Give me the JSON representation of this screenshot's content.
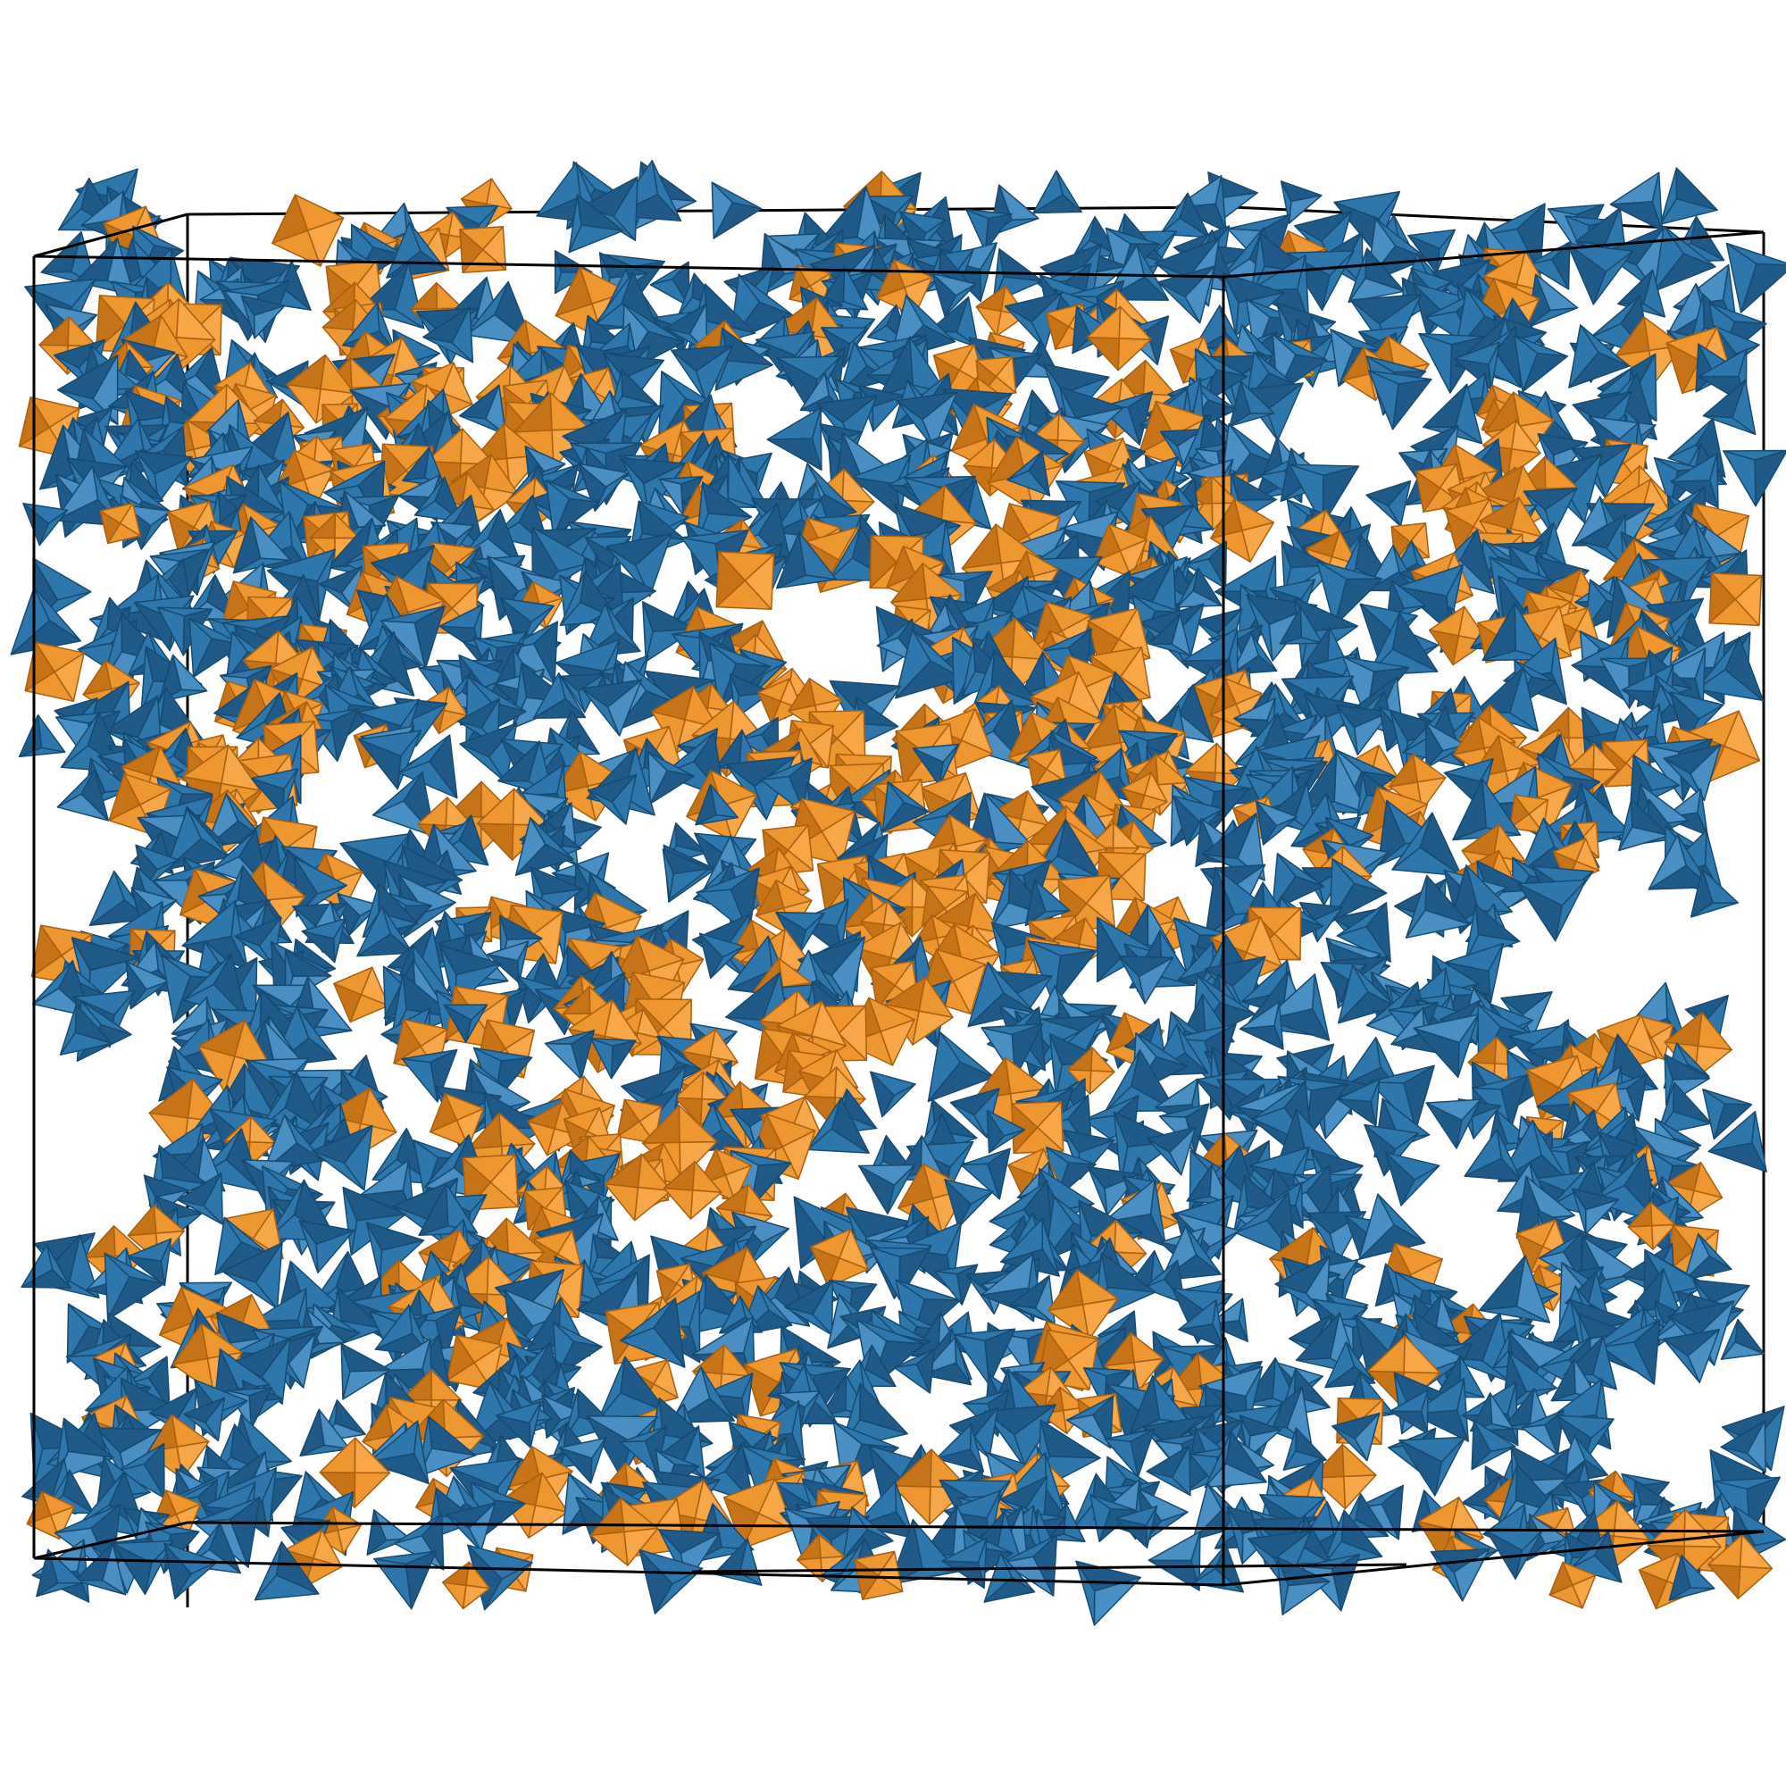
{
  "scene": {
    "description_kind": "render",
    "colors": {
      "background": "#ffffff",
      "box_edge": "#000000",
      "tetra_light": "#4a8fc4",
      "tetra_main": "#2e77ad",
      "tetra_dark": "#1f5a88",
      "tetra_edge": "#174a70",
      "octa_light": "#f7a747",
      "octa_main": "#ee9630",
      "octa_dark": "#c77418",
      "octa_edge": "#a85f10"
    },
    "particles": {
      "shapes": [
        "tetrahedron",
        "octahedron"
      ],
      "blue_icon": "tetrahedron-icon",
      "orange_icon": "octahedron-icon"
    }
  }
}
